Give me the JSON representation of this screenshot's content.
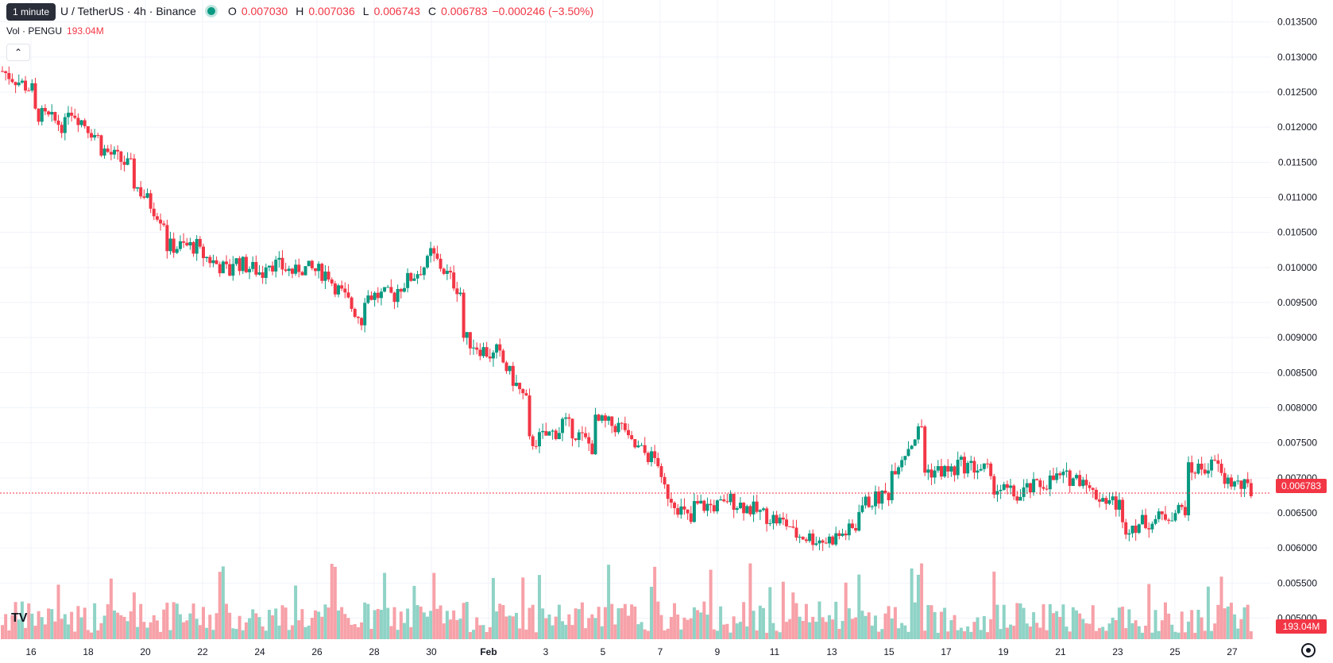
{
  "legend": {
    "title": "U / TetherUS · 4h · Binance",
    "o_label": "O",
    "o_value": "0.007030",
    "h_label": "H",
    "h_value": "0.007036",
    "l_label": "L",
    "l_value": "0.006743",
    "c_label": "C",
    "c_value": "0.006783",
    "change": "−0.000246 (−3.50%)"
  },
  "tooltip": "1 minute",
  "volume_legend": {
    "label": "Vol · PENGU",
    "value": "193.04M"
  },
  "badges": {
    "price": "0.006783",
    "volume": "193.04M"
  },
  "colors": {
    "up": "#089981",
    "down": "#f23645",
    "up_vol": "#8fd3c6",
    "down_vol": "#f7a1a8",
    "grid": "#f0f3fa"
  },
  "icons": {
    "collapse": "chevron-up-icon",
    "logo": "tradingview-logo-icon",
    "settings": "gear-icon"
  },
  "chart_data": {
    "type": "candlestick",
    "y_ticks": [
      "0.013500",
      "0.013000",
      "0.012500",
      "0.012000",
      "0.011500",
      "0.011000",
      "0.010500",
      "0.010000",
      "0.009500",
      "0.009000",
      "0.008500",
      "0.008000",
      "0.007500",
      "0.007000",
      "0.006500",
      "0.006000",
      "0.005500",
      "0.005000"
    ],
    "ylim": [
      0.0047,
      0.0137
    ],
    "x_labels": [
      "16",
      "18",
      "20",
      "22",
      "24",
      "26",
      "28",
      "30",
      "Feb",
      "3",
      "5",
      "7",
      "9",
      "11",
      "13",
      "15",
      "17",
      "19",
      "21",
      "23",
      "25",
      "27"
    ],
    "last_price": 0.006783,
    "anchors": [
      [
        0.0128,
        0.0125
      ],
      [
        0.0122,
        0.012
      ],
      [
        0.0123,
        0.0118
      ],
      [
        0.0117,
        0.0114
      ],
      [
        0.0112,
        0.0106
      ],
      [
        0.0103,
        0.0103
      ],
      [
        0.0102,
        0.0099
      ],
      [
        0.0101,
        0.0099
      ],
      [
        0.0101,
        0.0099
      ],
      [
        0.01,
        0.0099
      ],
      [
        0.0098,
        0.0092
      ],
      [
        0.0096,
        0.0096
      ],
      [
        0.0097,
        0.0101
      ],
      [
        0.0102,
        0.0096
      ],
      [
        0.009,
        0.0087
      ],
      [
        0.0088,
        0.008
      ],
      [
        0.0075,
        0.0077
      ],
      [
        0.0078,
        0.0074
      ],
      [
        0.0078,
        0.0077
      ],
      [
        0.0075,
        0.0072
      ],
      [
        0.0069,
        0.0063
      ],
      [
        0.0066,
        0.0066
      ],
      [
        0.0067,
        0.0065
      ],
      [
        0.0065,
        0.0063
      ],
      [
        0.0062,
        0.0061
      ],
      [
        0.0061,
        0.0063
      ],
      [
        0.0066,
        0.0068
      ],
      [
        0.0071,
        0.0078
      ],
      [
        0.0071,
        0.0071
      ],
      [
        0.0072,
        0.0071
      ],
      [
        0.0069,
        0.0067
      ],
      [
        0.0068,
        0.007
      ],
      [
        0.007,
        0.007
      ],
      [
        0.0068,
        0.0066
      ],
      [
        0.0063,
        0.0064
      ],
      [
        0.0064,
        0.0066
      ],
      [
        0.0071,
        0.0072
      ],
      [
        0.007,
        0.0068
      ]
    ]
  }
}
